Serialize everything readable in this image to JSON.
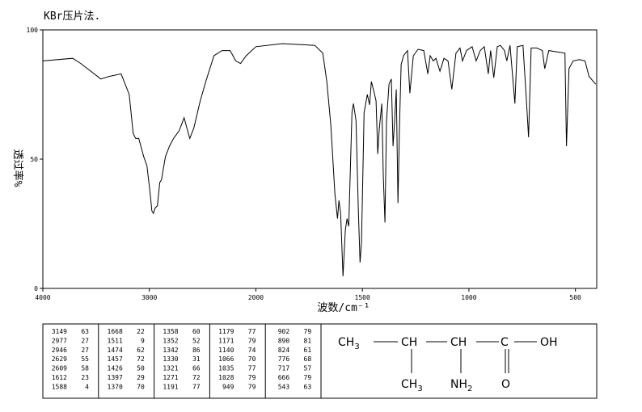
{
  "chart_data": {
    "type": "line",
    "title": "KBr压片法.",
    "xlabel": "波数/cm⁻¹",
    "ylabel": "透过率%",
    "xlim": [
      4000,
      400
    ],
    "ylim": [
      0,
      100
    ],
    "xticks": [
      4000,
      3000,
      2000,
      1500,
      1000,
      500
    ],
    "yticks": [
      0,
      50,
      100
    ],
    "series": [
      {
        "color": "#000000",
        "x": [
          4000,
          3720,
          3644,
          3455,
          3379,
          3265,
          3189,
          3152,
          3129,
          3100,
          3053,
          3023,
          2992,
          2977,
          2962,
          2947,
          2924,
          2902,
          2886,
          2849,
          2811,
          2773,
          2720,
          2674,
          2644,
          2621,
          2583,
          2523,
          2470,
          2394,
          2318,
          2242,
          2189,
          2144,
          2091,
          2000,
          1875,
          1723,
          1686,
          1667,
          1648,
          1629,
          1617,
          1610,
          1602,
          1591,
          1580,
          1572,
          1564,
          1549,
          1542,
          1530,
          1519,
          1511,
          1504,
          1492,
          1477,
          1466,
          1458,
          1447,
          1436,
          1428,
          1421,
          1409,
          1402,
          1394,
          1387,
          1375,
          1364,
          1356,
          1349,
          1341,
          1333,
          1326,
          1318,
          1307,
          1288,
          1277,
          1261,
          1239,
          1212,
          1193,
          1182,
          1167,
          1155,
          1136,
          1117,
          1098,
          1080,
          1061,
          1042,
          1030,
          1011,
          985,
          966,
          947,
          928,
          909,
          898,
          883,
          867,
          852,
          833,
          822,
          807,
          784,
          773,
          746,
          731,
          720,
          708,
          682,
          655,
          644,
          625,
          549,
          542,
          530,
          511,
          481,
          455,
          436,
          405
        ],
        "values": [
          88,
          89,
          87,
          81,
          82,
          83,
          75,
          60,
          58,
          58,
          51,
          47.5,
          36.5,
          30,
          29,
          31,
          32,
          41,
          42,
          51,
          55,
          58,
          61,
          66,
          61.5,
          58,
          62,
          72.5,
          80,
          90,
          92,
          92,
          88,
          87,
          90,
          93.5,
          94.7,
          94,
          91,
          80,
          63,
          36.5,
          27,
          34,
          29,
          4.7,
          22.5,
          27,
          24,
          68,
          71.5,
          65,
          30,
          10,
          18,
          68,
          75,
          71,
          80,
          76.5,
          72.5,
          52,
          61.5,
          71.5,
          44,
          25.5,
          64.5,
          79,
          81,
          55,
          64.5,
          77,
          33,
          61.5,
          86.5,
          90,
          92,
          75.5,
          90,
          92.5,
          92,
          83,
          90,
          88,
          89,
          84,
          89,
          88,
          77,
          91,
          93,
          88,
          92,
          93.5,
          88,
          92,
          93.5,
          83,
          92,
          81.5,
          93.5,
          94,
          92,
          88,
          94,
          71.5,
          93.5,
          94,
          74,
          58.5,
          93,
          93,
          92,
          85,
          92,
          91,
          55,
          85,
          88,
          88.5,
          88,
          82,
          79
        ]
      }
    ]
  },
  "peak_table": [
    [
      [
        3149,
        63
      ],
      [
        2977,
        27
      ],
      [
        2946,
        27
      ],
      [
        2629,
        55
      ],
      [
        2609,
        58
      ],
      [
        1612,
        23
      ],
      [
        1588,
        4
      ]
    ],
    [
      [
        1668,
        22
      ],
      [
        1511,
        9
      ],
      [
        1474,
        62
      ],
      [
        1457,
        72
      ],
      [
        1426,
        50
      ],
      [
        1397,
        29
      ],
      [
        1370,
        70
      ]
    ],
    [
      [
        1358,
        60
      ],
      [
        1352,
        52
      ],
      [
        1342,
        86
      ],
      [
        1330,
        31
      ],
      [
        1321,
        66
      ],
      [
        1271,
        72
      ],
      [
        1191,
        77
      ]
    ],
    [
      [
        1179,
        77
      ],
      [
        1171,
        79
      ],
      [
        1140,
        74
      ],
      [
        1066,
        70
      ],
      [
        1035,
        77
      ],
      [
        1028,
        79
      ],
      [
        949,
        79
      ]
    ],
    [
      [
        902,
        79
      ],
      [
        890,
        81
      ],
      [
        824,
        61
      ],
      [
        776,
        68
      ],
      [
        717,
        57
      ],
      [
        666,
        79
      ],
      [
        543,
        63
      ]
    ]
  ],
  "structure": {
    "atoms": [
      {
        "text": "CH",
        "sub": "3"
      },
      {
        "text": "CH"
      },
      {
        "text": "CH"
      },
      {
        "text": "C"
      },
      {
        "text": "OH"
      },
      {
        "text": "CH",
        "sub": "3"
      },
      {
        "text": "NH",
        "sub": "2"
      },
      {
        "text": "O"
      }
    ]
  }
}
